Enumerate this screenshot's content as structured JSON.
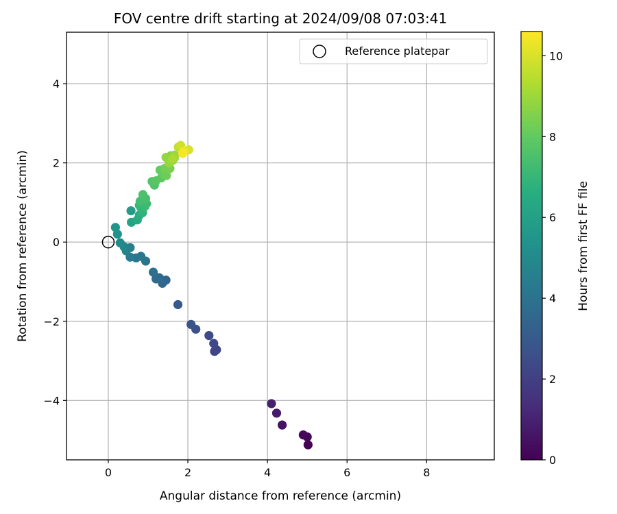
{
  "chart_data": {
    "type": "scatter",
    "title": "FOV centre drift starting at 2024/09/08 07:03:41",
    "xlabel": "Angular distance from reference (arcmin)",
    "ylabel": "Rotation from reference (arcmin)",
    "xlim": [
      -1.05,
      9.7
    ],
    "ylim": [
      -5.5,
      5.3
    ],
    "xticks": [
      0,
      2,
      4,
      6,
      8
    ],
    "yticks": [
      -4,
      -2,
      0,
      2,
      4
    ],
    "xtick_labels": [
      "0",
      "2",
      "4",
      "6",
      "8"
    ],
    "ytick_labels": [
      "−4",
      "−2",
      "0",
      "2",
      "4"
    ],
    "grid": true,
    "legend": {
      "position": "upper right",
      "entries": [
        {
          "label": "Reference platepar",
          "marker": "open circle",
          "color": "#000000"
        }
      ]
    },
    "reference": {
      "x": 0,
      "y": 0
    },
    "colorbar": {
      "label": "Hours from first FF file",
      "colormap": "viridis",
      "range": [
        0,
        10.6
      ],
      "ticks": [
        0,
        2,
        4,
        6,
        8,
        10
      ],
      "tick_labels": [
        "0",
        "2",
        "4",
        "6",
        "8",
        "10"
      ]
    },
    "points": [
      {
        "x": 5.02,
        "y": -5.12,
        "c": 0.05
      },
      {
        "x": 5.0,
        "y": -4.92,
        "c": 0.15
      },
      {
        "x": 4.9,
        "y": -4.87,
        "c": 0.25
      },
      {
        "x": 4.37,
        "y": -4.62,
        "c": 0.55
      },
      {
        "x": 4.23,
        "y": -4.32,
        "c": 0.75
      },
      {
        "x": 4.1,
        "y": -4.08,
        "c": 0.9
      },
      {
        "x": 2.72,
        "y": -2.72,
        "c": 2.1
      },
      {
        "x": 2.67,
        "y": -2.76,
        "c": 2.2
      },
      {
        "x": 2.65,
        "y": -2.56,
        "c": 2.3
      },
      {
        "x": 2.53,
        "y": -2.36,
        "c": 2.4
      },
      {
        "x": 2.2,
        "y": -2.2,
        "c": 2.6
      },
      {
        "x": 2.08,
        "y": -2.08,
        "c": 2.75
      },
      {
        "x": 1.75,
        "y": -1.58,
        "c": 3.0
      },
      {
        "x": 1.45,
        "y": -0.96,
        "c": 3.4
      },
      {
        "x": 1.36,
        "y": -1.04,
        "c": 3.5
      },
      {
        "x": 1.33,
        "y": -0.95,
        "c": 3.55
      },
      {
        "x": 1.28,
        "y": -0.9,
        "c": 3.6
      },
      {
        "x": 1.2,
        "y": -0.93,
        "c": 3.7
      },
      {
        "x": 1.13,
        "y": -0.76,
        "c": 3.8
      },
      {
        "x": 0.94,
        "y": -0.48,
        "c": 4.0
      },
      {
        "x": 0.82,
        "y": -0.36,
        "c": 4.1
      },
      {
        "x": 0.7,
        "y": -0.4,
        "c": 4.2
      },
      {
        "x": 0.55,
        "y": -0.38,
        "c": 4.4
      },
      {
        "x": 0.55,
        "y": -0.14,
        "c": 4.5
      },
      {
        "x": 0.45,
        "y": -0.22,
        "c": 4.6
      },
      {
        "x": 0.4,
        "y": -0.12,
        "c": 4.8
      },
      {
        "x": 0.3,
        "y": -0.02,
        "c": 5.0
      },
      {
        "x": 0.23,
        "y": 0.2,
        "c": 5.3
      },
      {
        "x": 0.18,
        "y": 0.37,
        "c": 5.5
      },
      {
        "x": 0.57,
        "y": 0.79,
        "c": 5.8
      },
      {
        "x": 0.58,
        "y": 0.5,
        "c": 6.1
      },
      {
        "x": 0.73,
        "y": 0.56,
        "c": 6.4
      },
      {
        "x": 0.78,
        "y": 0.68,
        "c": 6.6
      },
      {
        "x": 0.86,
        "y": 0.74,
        "c": 6.8
      },
      {
        "x": 0.82,
        "y": 0.87,
        "c": 6.9
      },
      {
        "x": 0.78,
        "y": 0.93,
        "c": 7.0
      },
      {
        "x": 0.92,
        "y": 0.9,
        "c": 7.1
      },
      {
        "x": 0.96,
        "y": 0.97,
        "c": 7.2
      },
      {
        "x": 0.8,
        "y": 1.03,
        "c": 7.3
      },
      {
        "x": 0.94,
        "y": 1.1,
        "c": 7.4
      },
      {
        "x": 0.87,
        "y": 1.2,
        "c": 7.5
      },
      {
        "x": 1.16,
        "y": 1.44,
        "c": 7.6
      },
      {
        "x": 1.1,
        "y": 1.53,
        "c": 7.7
      },
      {
        "x": 1.2,
        "y": 1.55,
        "c": 7.8
      },
      {
        "x": 1.33,
        "y": 1.62,
        "c": 7.9
      },
      {
        "x": 1.3,
        "y": 1.82,
        "c": 8.0
      },
      {
        "x": 1.39,
        "y": 1.72,
        "c": 8.1
      },
      {
        "x": 1.46,
        "y": 1.68,
        "c": 8.2
      },
      {
        "x": 1.42,
        "y": 1.86,
        "c": 8.3
      },
      {
        "x": 1.55,
        "y": 1.86,
        "c": 8.4
      },
      {
        "x": 1.61,
        "y": 2.06,
        "c": 8.5
      },
      {
        "x": 1.57,
        "y": 2.18,
        "c": 8.6
      },
      {
        "x": 1.66,
        "y": 2.12,
        "c": 8.7
      },
      {
        "x": 1.45,
        "y": 2.14,
        "c": 8.8
      },
      {
        "x": 1.53,
        "y": 2.0,
        "c": 8.9
      },
      {
        "x": 1.67,
        "y": 2.2,
        "c": 9.0
      },
      {
        "x": 1.62,
        "y": 2.1,
        "c": 9.2
      },
      {
        "x": 1.76,
        "y": 2.4,
        "c": 9.6
      },
      {
        "x": 1.82,
        "y": 2.44,
        "c": 9.8
      },
      {
        "x": 2.02,
        "y": 2.33,
        "c": 10.0
      },
      {
        "x": 1.9,
        "y": 2.3,
        "c": 10.3
      },
      {
        "x": 1.87,
        "y": 2.24,
        "c": 10.5
      }
    ]
  }
}
